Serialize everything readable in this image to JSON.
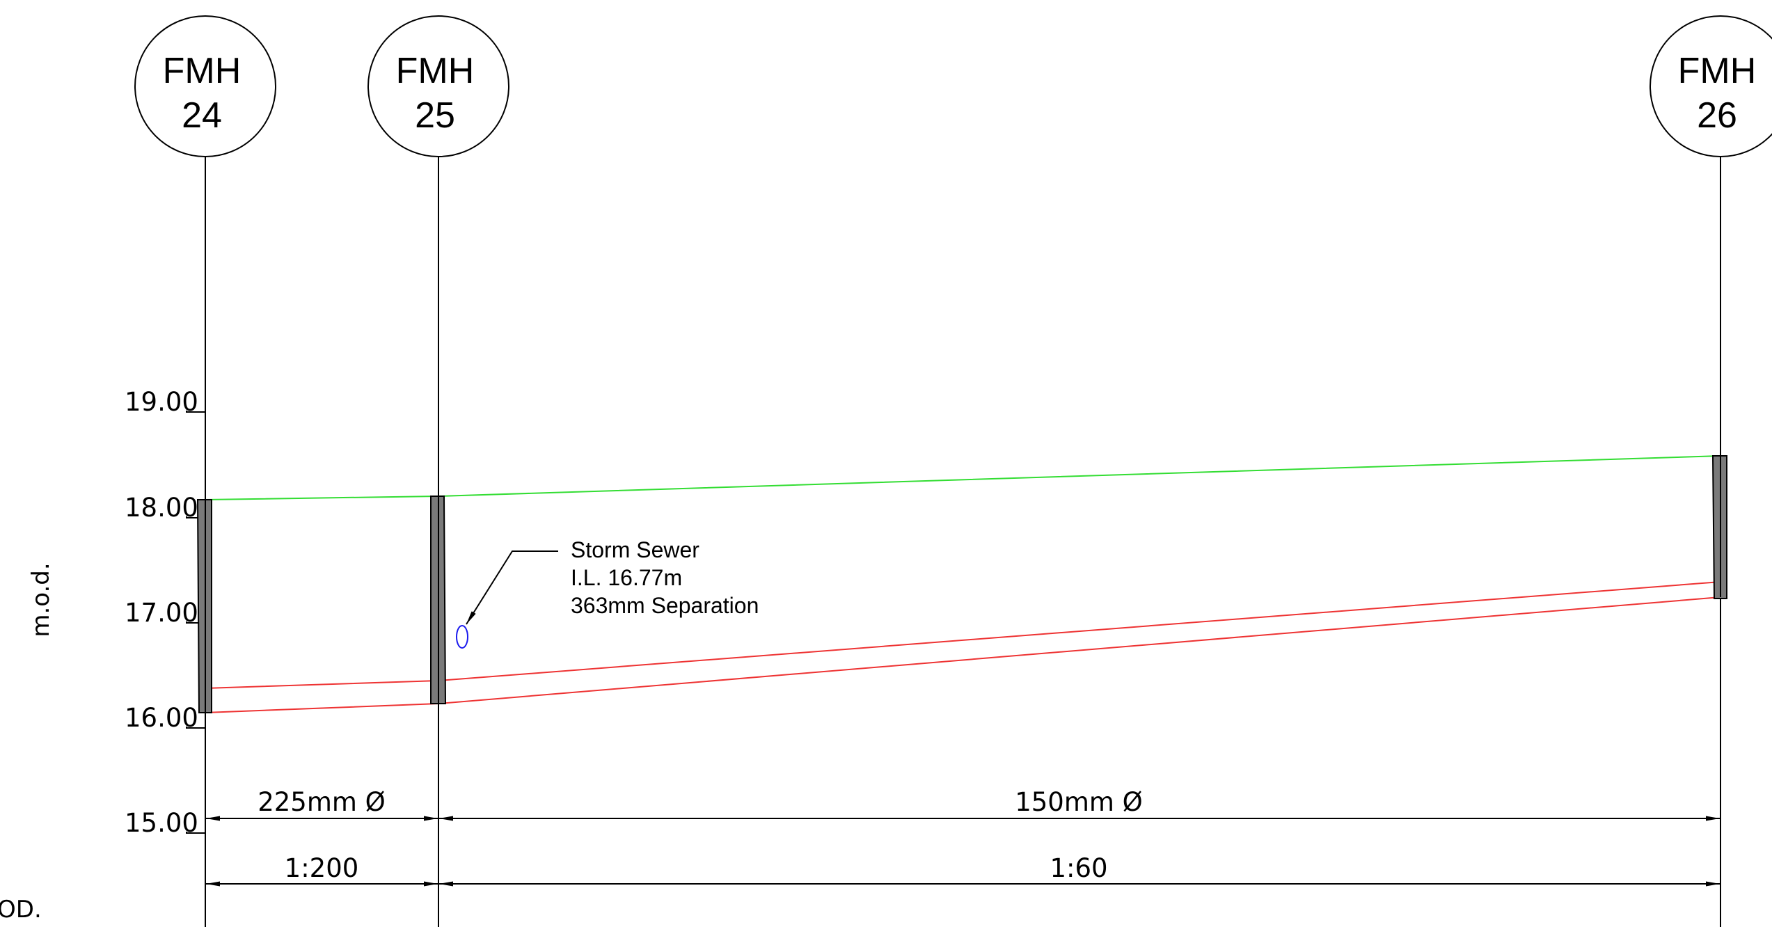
{
  "manholes": [
    {
      "id": "fmh24",
      "line1": "FMH",
      "line2": "24"
    },
    {
      "id": "fmh25",
      "line1": "FMH",
      "line2": "25"
    },
    {
      "id": "fmh26",
      "line1": "FMH",
      "line2": "26"
    }
  ],
  "levels": [
    "19.00",
    "18.00",
    "17.00",
    "16.00",
    "15.00"
  ],
  "axis_label": "m.o.d.",
  "datum_fragment": "OD.",
  "annotation": {
    "line1": "Storm Sewer",
    "line2": "I.L. 16.77m",
    "line3": "363mm Separation"
  },
  "dimensions": {
    "diameter_1": "225mm Ø",
    "diameter_2": "150mm Ø",
    "gradient_1": "1:200",
    "gradient_2": "1:60"
  },
  "colors": {
    "ground_line": "#33dd33",
    "pipe_line": "#ee3333",
    "crossing_marker": "#1a1aee",
    "manhole_fill": "#7a7a7a"
  }
}
